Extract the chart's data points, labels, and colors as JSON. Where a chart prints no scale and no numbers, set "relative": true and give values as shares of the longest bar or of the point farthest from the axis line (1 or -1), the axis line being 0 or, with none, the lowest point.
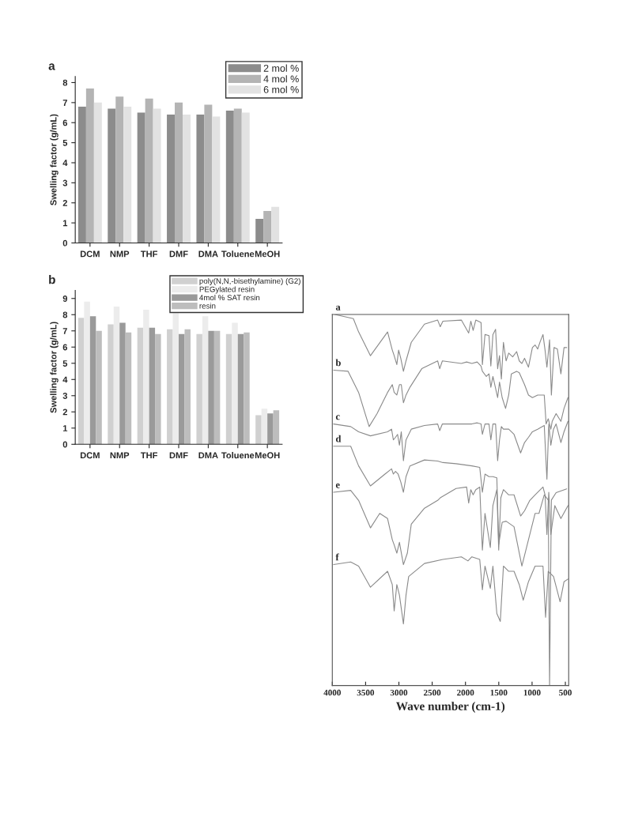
{
  "chart_data": [
    {
      "type": "bar",
      "title": "a",
      "ylabel": "Swelling factor (g/mL)",
      "categories": [
        "DCM",
        "NMP",
        "THF",
        "DMF",
        "DMA",
        "Toluene",
        "MeOH"
      ],
      "series": [
        {
          "name": "2 mol %",
          "color": "#8c8c8c",
          "values": [
            6.8,
            6.7,
            6.5,
            6.4,
            6.4,
            6.6,
            1.2
          ]
        },
        {
          "name": "4 mol %",
          "color": "#b4b4b4",
          "values": [
            7.7,
            7.3,
            7.2,
            7.0,
            6.9,
            6.7,
            1.6
          ]
        },
        {
          "name": "6 mol %",
          "color": "#e2e2e2",
          "values": [
            7.0,
            6.8,
            6.7,
            6.4,
            6.3,
            6.5,
            1.8
          ]
        }
      ],
      "ylim": [
        0,
        8.3
      ],
      "yticks": [
        0,
        1,
        2,
        3,
        4,
        5,
        6,
        7,
        8
      ],
      "legend": "top right"
    },
    {
      "type": "bar",
      "title": "b",
      "ylabel": "Swelling factor (g/mL)",
      "categories": [
        "DCM",
        "NMP",
        "THF",
        "DMF",
        "DMA",
        "Toluene",
        "MeOH"
      ],
      "series": [
        {
          "name": "poly(N,N,-bisethylamine) (G2)",
          "color": "#d0d0d0",
          "values": [
            7.8,
            7.4,
            7.2,
            7.1,
            6.8,
            6.8,
            1.8
          ]
        },
        {
          "name": "PEGylated resin",
          "color": "#ececec",
          "values": [
            8.8,
            8.5,
            8.3,
            8.1,
            7.9,
            7.5,
            2.2
          ]
        },
        {
          "name": "4mol % SAT resin",
          "color": "#9a9a9a",
          "values": [
            7.9,
            7.5,
            7.2,
            6.8,
            7.0,
            6.8,
            1.9
          ]
        },
        {
          "name": "resin",
          "color": "#bdbdbd",
          "values": [
            7.0,
            6.9,
            6.8,
            7.1,
            7.0,
            6.9,
            2.1
          ]
        }
      ],
      "ylim": [
        0,
        9.5
      ],
      "yticks": [
        0,
        1,
        2,
        3,
        4,
        5,
        6,
        7,
        8,
        9
      ],
      "legend": "top right"
    },
    {
      "type": "line",
      "xlabel": "Wave number (cm-1)",
      "relative": true,
      "tick_labels": "x",
      "xlim": [
        4000,
        450
      ],
      "xticks": [
        4000,
        3500,
        3000,
        2500,
        2000,
        1500,
        1000,
        500
      ],
      "annotations": [
        "a",
        "b",
        "c",
        "d",
        "e",
        "f"
      ],
      "series": [
        {
          "color": "#8a8a8a",
          "x": [
            3961,
            3684,
            3605,
            3427,
            3170,
            3099,
            3071,
            3031,
            3004,
            2972,
            2932,
            2893,
            2814,
            2616,
            2418,
            2379,
            2339,
            2062,
            1952,
            1920,
            1885,
            1845,
            1766,
            1746,
            1707,
            1647,
            1619,
            1588,
            1548,
            1517,
            1489,
            1461,
            1430,
            1390,
            1351,
            1291,
            1232,
            1192,
            1153,
            1113,
            1054,
            995,
            955,
            916,
            876,
            836,
            805,
            777,
            737,
            710,
            670,
            620,
            567,
            520,
            480
          ],
          "values": [
            1.0,
            0.989,
            0.953,
            0.889,
            0.953,
            0.904,
            0.889,
            0.865,
            0.904,
            0.882,
            0.847,
            0.875,
            0.925,
            0.974,
            0.985,
            0.967,
            0.982,
            0.985,
            0.95,
            0.982,
            0.957,
            0.985,
            0.978,
            0.865,
            0.946,
            0.943,
            0.861,
            0.946,
            0.96,
            0.854,
            0.889,
            0.826,
            0.925,
            0.875,
            0.896,
            0.886,
            0.9,
            0.875,
            0.868,
            0.882,
            0.858,
            0.911,
            0.918,
            0.907,
            0.928,
            0.946,
            0.904,
            0.858,
            0.932,
            0.783,
            0.911,
            0.907,
            0.84,
            0.911,
            0.911
          ]
        },
        {
          "color": "#8a8a8a",
          "x": [
            3981,
            3763,
            3605,
            3447,
            3328,
            3170,
            3099,
            3071,
            3031,
            2992,
            2964,
            2932,
            2893,
            2834,
            2656,
            2418,
            2387,
            2347,
            2062,
            1983,
            1904,
            1825,
            1766,
            1746,
            1687,
            1647,
            1619,
            1588,
            1517,
            1489,
            1449,
            1398,
            1351,
            1311,
            1232,
            1192,
            1113,
            1054,
            995,
            916,
            817,
            789,
            757,
            718,
            698,
            639,
            567,
            520,
            461
          ],
          "values": [
            0.85,
            0.847,
            0.79,
            0.698,
            0.733,
            0.79,
            0.811,
            0.79,
            0.783,
            0.811,
            0.811,
            0.762,
            0.783,
            0.804,
            0.854,
            0.875,
            0.854,
            0.875,
            0.868,
            0.872,
            0.868,
            0.872,
            0.861,
            0.847,
            0.833,
            0.84,
            0.804,
            0.833,
            0.776,
            0.818,
            0.776,
            0.747,
            0.783,
            0.84,
            0.847,
            0.843,
            0.811,
            0.783,
            0.776,
            0.783,
            0.783,
            0.705,
            0.719,
            0.691,
            0.712,
            0.733,
            0.712,
            0.747,
            0.776
          ]
        },
        {
          "color": "#8a8a8a",
          "x": [
            3981,
            3724,
            3605,
            3427,
            3170,
            3110,
            3083,
            3051,
            3020,
            2992,
            2964,
            2932,
            2893,
            2814,
            2616,
            2418,
            2387,
            2347,
            1904,
            1825,
            1766,
            1746,
            1707,
            1647,
            1619,
            1588,
            1548,
            1517,
            1489,
            1461,
            1430,
            1351,
            1271,
            1172,
            1113,
            1054,
            995,
            916,
            817,
            777,
            749,
            718,
            678,
            639,
            567,
            520,
            461
          ],
          "values": [
            0.705,
            0.698,
            0.684,
            0.673,
            0.684,
            0.691,
            0.662,
            0.669,
            0.677,
            0.648,
            0.684,
            0.606,
            0.662,
            0.691,
            0.701,
            0.705,
            0.687,
            0.705,
            0.705,
            0.708,
            0.705,
            0.677,
            0.705,
            0.705,
            0.662,
            0.705,
            0.705,
            0.606,
            0.662,
            0.698,
            0.691,
            0.691,
            0.677,
            0.627,
            0.655,
            0.669,
            0.684,
            0.691,
            0.701,
            0.556,
            0.705,
            0.648,
            0.691,
            0.705,
            0.655,
            0.684,
            0.712
          ]
        },
        {
          "color": "#8a8a8a",
          "x": [
            3981,
            3724,
            3605,
            3427,
            3209,
            3110,
            3083,
            3051,
            3012,
            2972,
            2932,
            2893,
            2834,
            2616,
            2418,
            2339,
            2142,
            1904,
            1786,
            1746,
            1707,
            1647,
            1588,
            1529,
            1501,
            1449,
            1390,
            1271,
            1153,
            1054,
            955,
            896,
            817,
            757,
            737,
            710,
            639,
            480
          ],
          "values": [
            0.645,
            0.645,
            0.592,
            0.538,
            0.57,
            0.584,
            0.57,
            0.577,
            0.57,
            0.549,
            0.521,
            0.563,
            0.592,
            0.608,
            0.605,
            0.601,
            0.598,
            0.592,
            0.588,
            0.521,
            0.57,
            0.563,
            0.563,
            0.56,
            0.38,
            0.44,
            0.443,
            0.428,
            0.322,
            0.393,
            0.464,
            0.464,
            0.514,
            0.5,
            0.0,
            0.5,
            0.52,
            0.53
          ]
        },
        {
          "color": "#8a8a8a",
          "x": [
            3981,
            3724,
            3605,
            3427,
            3288,
            3170,
            3099,
            3071,
            3031,
            2992,
            2932,
            2873,
            2814,
            2616,
            2418,
            2379,
            2142,
            1983,
            1952,
            1920,
            1885,
            1845,
            1786,
            1746,
            1707,
            1627,
            1588,
            1529,
            1501,
            1469,
            1430,
            1351,
            1271,
            1172,
            1113,
            1034,
            955,
            836,
            805,
            777,
            749,
            718,
            658,
            567,
            461
          ],
          "values": [
            0.521,
            0.526,
            0.499,
            0.425,
            0.464,
            0.45,
            0.393,
            0.379,
            0.357,
            0.386,
            0.326,
            0.357,
            0.435,
            0.478,
            0.499,
            0.506,
            0.531,
            0.535,
            0.492,
            0.528,
            0.514,
            0.528,
            0.535,
            0.365,
            0.464,
            0.372,
            0.485,
            0.528,
            0.365,
            0.506,
            0.528,
            0.514,
            0.514,
            0.457,
            0.471,
            0.499,
            0.514,
            0.535,
            0.514,
            0.407,
            0.521,
            0.407,
            0.485,
            0.45,
            0.485
          ]
        },
        {
          "color": "#8a8a8a",
          "x": [
            3981,
            3724,
            3605,
            3427,
            3170,
            3099,
            3071,
            3031,
            2992,
            2932,
            2893,
            2853,
            2616,
            2339,
            2062,
            1963,
            1904,
            1786,
            1746,
            1707,
            1627,
            1588,
            1529,
            1477,
            1430,
            1351,
            1271,
            1192,
            1133,
            1054,
            955,
            836,
            797,
            757,
            678,
            579,
            520,
            461
          ],
          "values": [
            0.326,
            0.333,
            0.322,
            0.265,
            0.308,
            0.272,
            0.201,
            0.272,
            0.244,
            0.166,
            0.244,
            0.294,
            0.329,
            0.34,
            0.347,
            0.336,
            0.347,
            0.34,
            0.258,
            0.322,
            0.262,
            0.322,
            0.194,
            0.173,
            0.322,
            0.308,
            0.308,
            0.272,
            0.23,
            0.28,
            0.322,
            0.322,
            0.184,
            0.308,
            0.294,
            0.226,
            0.28,
            0.287
          ]
        }
      ]
    }
  ]
}
